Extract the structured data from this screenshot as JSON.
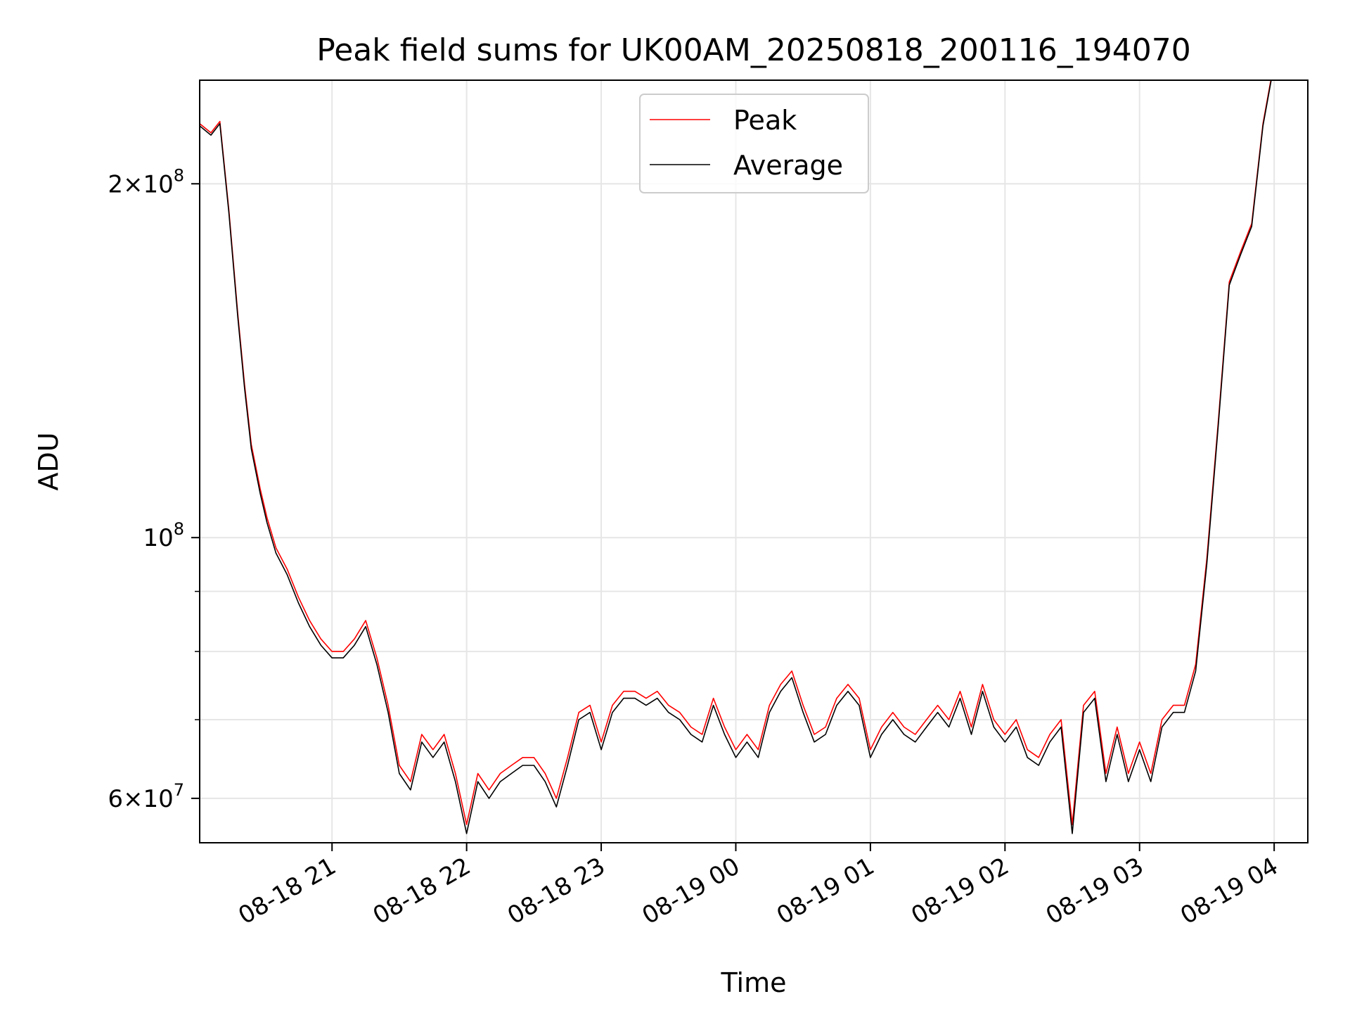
{
  "chart_data": {
    "type": "line",
    "title": "Peak field sums for UK00AM_20250818_200116_194070",
    "xlabel": "Time",
    "ylabel": "ADU",
    "y_scale": "log",
    "grid": true,
    "legend": "upper center",
    "xlim": [
      "2025-08-18 20:01",
      "2025-08-19 04:15"
    ],
    "ylim": [
      55000000,
      245000000
    ],
    "x_ticks": [
      "08-18 21",
      "08-18 22",
      "08-18 23",
      "08-19 00",
      "08-19 01",
      "08-19 02",
      "08-19 03",
      "08-19 04"
    ],
    "y_ticks": [
      {
        "value": 60000000,
        "mantissa": "6",
        "exp": "7"
      },
      {
        "value": 100000000,
        "mantissa": "",
        "exp": "8"
      },
      {
        "value": 200000000,
        "mantissa": "2",
        "exp": "8"
      }
    ],
    "y_minor_ticks": [
      70000000,
      80000000,
      90000000
    ],
    "colors": {
      "Peak": "#ff0000",
      "Average": "#000000"
    },
    "x": [
      "2025-08-18 20:01",
      "2025-08-18 20:06",
      "2025-08-18 20:10",
      "2025-08-18 20:14",
      "2025-08-18 20:18",
      "2025-08-18 20:21",
      "2025-08-18 20:24",
      "2025-08-18 20:28",
      "2025-08-18 20:31",
      "2025-08-18 20:35",
      "2025-08-18 20:40",
      "2025-08-18 20:45",
      "2025-08-18 20:50",
      "2025-08-18 20:55",
      "2025-08-18 21:00",
      "2025-08-18 21:05",
      "2025-08-18 21:10",
      "2025-08-18 21:15",
      "2025-08-18 21:20",
      "2025-08-18 21:25",
      "2025-08-18 21:30",
      "2025-08-18 21:35",
      "2025-08-18 21:40",
      "2025-08-18 21:45",
      "2025-08-18 21:50",
      "2025-08-18 21:55",
      "2025-08-18 22:00",
      "2025-08-18 22:05",
      "2025-08-18 22:10",
      "2025-08-18 22:15",
      "2025-08-18 22:20",
      "2025-08-18 22:25",
      "2025-08-18 22:30",
      "2025-08-18 22:35",
      "2025-08-18 22:40",
      "2025-08-18 22:45",
      "2025-08-18 22:50",
      "2025-08-18 22:55",
      "2025-08-18 23:00",
      "2025-08-18 23:05",
      "2025-08-18 23:10",
      "2025-08-18 23:15",
      "2025-08-18 23:20",
      "2025-08-18 23:25",
      "2025-08-18 23:30",
      "2025-08-18 23:35",
      "2025-08-18 23:40",
      "2025-08-18 23:45",
      "2025-08-18 23:50",
      "2025-08-18 23:55",
      "2025-08-19 00:00",
      "2025-08-19 00:05",
      "2025-08-19 00:10",
      "2025-08-19 00:15",
      "2025-08-19 00:20",
      "2025-08-19 00:25",
      "2025-08-19 00:30",
      "2025-08-19 00:35",
      "2025-08-19 00:40",
      "2025-08-19 00:45",
      "2025-08-19 00:50",
      "2025-08-19 00:55",
      "2025-08-19 01:00",
      "2025-08-19 01:05",
      "2025-08-19 01:10",
      "2025-08-19 01:15",
      "2025-08-19 01:20",
      "2025-08-19 01:25",
      "2025-08-19 01:30",
      "2025-08-19 01:35",
      "2025-08-19 01:40",
      "2025-08-19 01:45",
      "2025-08-19 01:50",
      "2025-08-19 01:55",
      "2025-08-19 02:00",
      "2025-08-19 02:05",
      "2025-08-19 02:10",
      "2025-08-19 02:15",
      "2025-08-19 02:20",
      "2025-08-19 02:25",
      "2025-08-19 02:30",
      "2025-08-19 02:35",
      "2025-08-19 02:40",
      "2025-08-19 02:45",
      "2025-08-19 02:50",
      "2025-08-19 02:55",
      "2025-08-19 03:00",
      "2025-08-19 03:05",
      "2025-08-19 03:10",
      "2025-08-19 03:15",
      "2025-08-19 03:20",
      "2025-08-19 03:25",
      "2025-08-19 03:30",
      "2025-08-19 03:35",
      "2025-08-19 03:40",
      "2025-08-19 03:45",
      "2025-08-19 03:50",
      "2025-08-19 03:55",
      "2025-08-19 03:59"
    ],
    "series": [
      {
        "name": "Peak",
        "values": [
          225000000,
          221000000,
          226000000,
          190000000,
          155000000,
          135000000,
          120000000,
          110000000,
          104000000,
          98000000,
          94000000,
          89000000,
          85000000,
          82000000,
          80000000,
          80000000,
          82000000,
          85000000,
          79000000,
          72000000,
          64000000,
          62000000,
          68000000,
          66000000,
          68000000,
          63000000,
          57000000,
          63000000,
          61000000,
          63000000,
          64000000,
          65000000,
          65000000,
          63000000,
          60000000,
          65000000,
          71000000,
          72000000,
          67000000,
          72000000,
          74000000,
          74000000,
          73000000,
          74000000,
          72000000,
          71000000,
          69000000,
          68000000,
          73000000,
          69000000,
          66000000,
          68000000,
          66000000,
          72000000,
          75000000,
          77000000,
          72000000,
          68000000,
          69000000,
          73000000,
          75000000,
          73000000,
          66000000,
          69000000,
          71000000,
          69000000,
          68000000,
          70000000,
          72000000,
          70000000,
          74000000,
          69000000,
          75000000,
          70000000,
          68000000,
          70000000,
          66000000,
          65000000,
          68000000,
          70000000,
          57000000,
          72000000,
          74000000,
          63000000,
          69000000,
          63000000,
          67000000,
          63000000,
          70000000,
          72000000,
          72000000,
          78000000,
          96000000,
          125000000,
          165000000,
          175000000,
          185000000,
          225000000,
          248000000
        ]
      },
      {
        "name": "Average",
        "values": [
          224000000,
          220000000,
          225000000,
          189000000,
          154000000,
          134000000,
          119000000,
          109000000,
          103000000,
          97000000,
          93000000,
          88000000,
          84000000,
          81000000,
          79000000,
          79000000,
          81000000,
          84000000,
          78000000,
          71000000,
          63000000,
          61000000,
          67000000,
          65000000,
          67000000,
          62000000,
          56000000,
          62000000,
          60000000,
          62000000,
          63000000,
          64000000,
          64000000,
          62000000,
          59000000,
          64000000,
          70000000,
          71000000,
          66000000,
          71000000,
          73000000,
          73000000,
          72000000,
          73000000,
          71000000,
          70000000,
          68000000,
          67000000,
          72000000,
          68000000,
          65000000,
          67000000,
          65000000,
          71000000,
          74000000,
          76000000,
          71000000,
          67000000,
          68000000,
          72000000,
          74000000,
          72000000,
          65000000,
          68000000,
          70000000,
          68000000,
          67000000,
          69000000,
          71000000,
          69000000,
          73000000,
          68000000,
          74000000,
          69000000,
          67000000,
          69000000,
          65000000,
          64000000,
          67000000,
          69000000,
          56000000,
          71000000,
          73000000,
          62000000,
          68000000,
          62000000,
          66000000,
          62000000,
          69000000,
          71000000,
          71000000,
          77000000,
          95000000,
          124000000,
          164000000,
          174000000,
          184000000,
          224000000,
          247000000
        ]
      }
    ]
  }
}
